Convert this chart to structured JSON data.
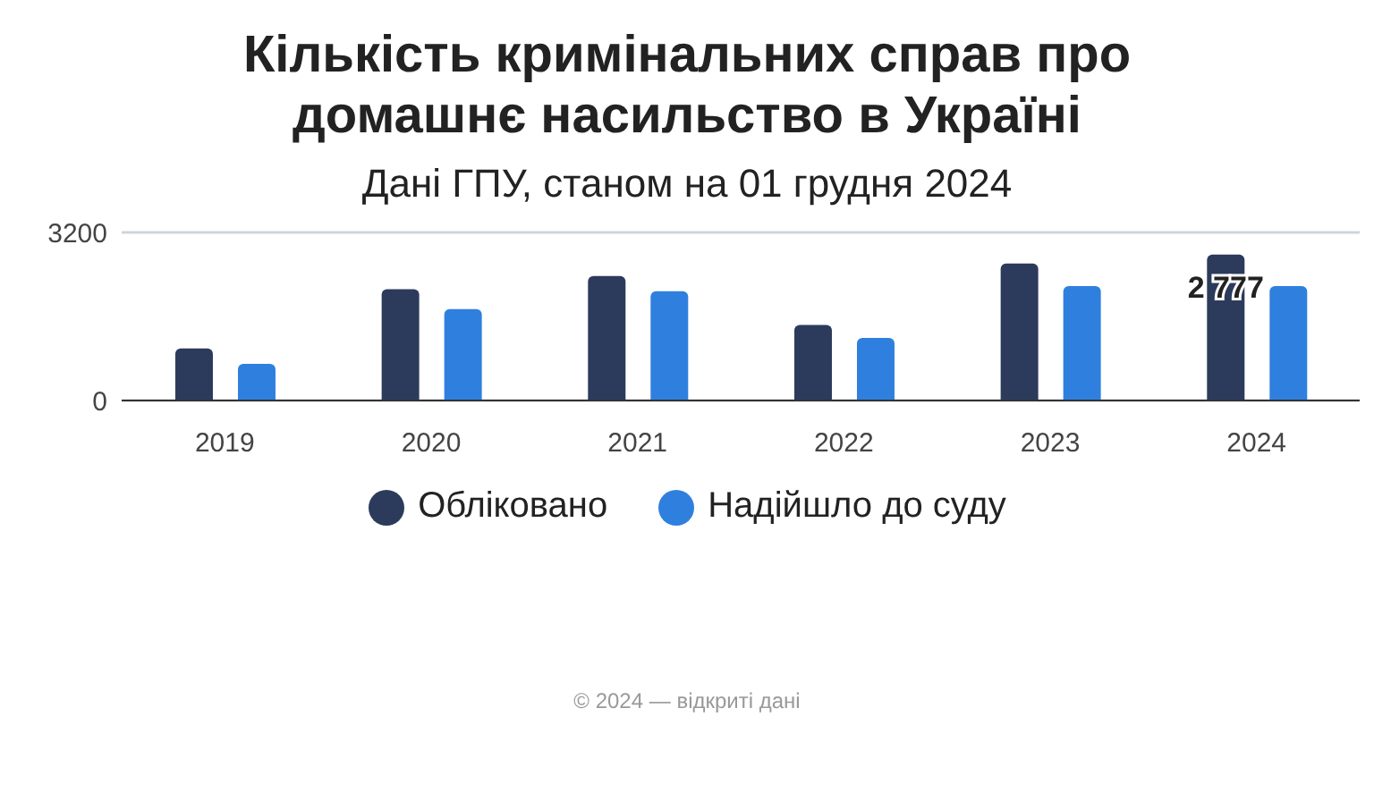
{
  "chart_data": {
    "type": "bar",
    "title": "Кількість кримінальних справ про домашнє насильство в Україні",
    "subtitle": "Дані ГПУ, станом на 01 грудня 2024",
    "categories": [
      "2019",
      "2020",
      "2021",
      "2022",
      "2023",
      "2024"
    ],
    "series": [
      {
        "name": "Обліковано",
        "color": "#2c3b5c",
        "values": [
          990,
          2120,
          2370,
          1440,
          2610,
          2777
        ],
        "value_labels": [
          null,
          null,
          null,
          null,
          null,
          "2 777"
        ]
      },
      {
        "name": "Надійшло до суду",
        "color": "#2f80de",
        "values": [
          700,
          1740,
          2080,
          1190,
          2180,
          2180
        ]
      }
    ],
    "ylim": [
      0,
      3200
    ],
    "yticks": [
      0,
      3200
    ],
    "grid": "y",
    "legend": "bottom",
    "annotations": [
      "© 2024 — відкриті дані"
    ]
  }
}
